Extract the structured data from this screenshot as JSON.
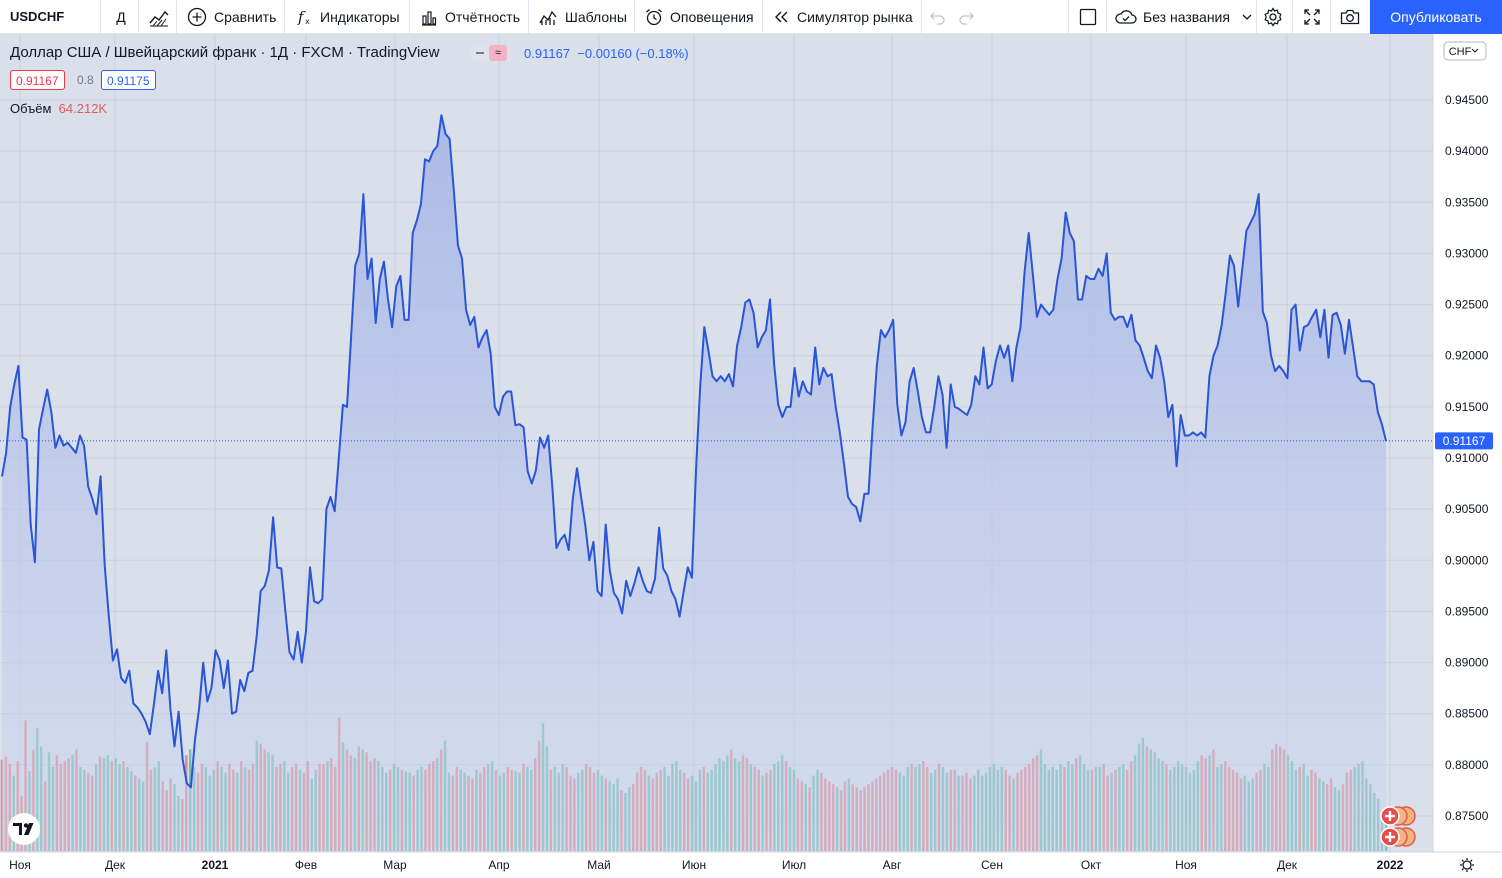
{
  "toolbar": {
    "symbol": "USDCHF",
    "interval": "Д",
    "compare": "Сравнить",
    "indicators": "Индикаторы",
    "reports": "Отчётность",
    "templates": "Шаблоны",
    "alerts": "Оповещения",
    "replay": "Симулятор рынка",
    "layout_name": "Без названия",
    "publish": "Опубликовать"
  },
  "legend": {
    "title": "Доллар США / Швейцарский франк · 1Д · FXCM · TradingView",
    "price": "0.91167",
    "change": "−0.00160 (−0.18%)",
    "bid": "0.91167",
    "spread": "0.8",
    "ask": "0.91175",
    "volume_label": "Объём",
    "volume_value": "64.212K"
  },
  "price_axis": {
    "currency": "CHF",
    "last_price_label": "0.91167",
    "tick_labels": [
      "0.94500",
      "0.94000",
      "0.93500",
      "0.93000",
      "0.92500",
      "0.92000",
      "0.91500",
      "0.91000",
      "0.90500",
      "0.90000",
      "0.89500",
      "0.89000",
      "0.88500",
      "0.88000",
      "0.87500"
    ]
  },
  "time_axis": {
    "labels": [
      "Ноя",
      "Дек",
      "2021",
      "Фев",
      "Мар",
      "Апр",
      "Май",
      "Июн",
      "Июл",
      "Авг",
      "Сен",
      "Окт",
      "Ноя",
      "Дек",
      "2022"
    ]
  },
  "colors": {
    "line": "#2a55d6",
    "up_volume": "#5fb8a7",
    "down_volume": "#e07b7b",
    "accent": "#2962ff",
    "negative": "#f23645"
  },
  "chart_data": {
    "type": "area",
    "symbol": "USDCHF",
    "ylim": [
      0.873,
      0.949
    ],
    "x_labels": [
      "Ноя",
      "Дек",
      "2021",
      "Фев",
      "Мар",
      "Апр",
      "Май",
      "Июн",
      "Июл",
      "Авг",
      "Сен",
      "Окт",
      "Ноя",
      "Дек",
      "2022"
    ],
    "last_value": 0.91167,
    "values": [
      0.9082,
      0.9105,
      0.915,
      0.9172,
      0.919,
      0.912,
      0.9118,
      0.9035,
      0.8998,
      0.9128,
      0.9148,
      0.9167,
      0.9145,
      0.911,
      0.9122,
      0.9112,
      0.9115,
      0.911,
      0.9105,
      0.9122,
      0.9112,
      0.9072,
      0.906,
      0.9045,
      0.9082,
      0.8995,
      0.8945,
      0.8902,
      0.8913,
      0.8885,
      0.888,
      0.8892,
      0.886,
      0.8856,
      0.885,
      0.8842,
      0.883,
      0.886,
      0.8892,
      0.887,
      0.8912,
      0.8855,
      0.8818,
      0.8852,
      0.8805,
      0.8782,
      0.8778,
      0.8825,
      0.8855,
      0.89,
      0.8862,
      0.8875,
      0.8912,
      0.8902,
      0.8875,
      0.8902,
      0.885,
      0.8852,
      0.8883,
      0.8872,
      0.889,
      0.8892,
      0.8925,
      0.897,
      0.8975,
      0.899,
      0.9042,
      0.8993,
      0.8992,
      0.895,
      0.891,
      0.8903,
      0.893,
      0.89,
      0.893,
      0.8993,
      0.896,
      0.8958,
      0.8962,
      0.905,
      0.9062,
      0.9048,
      0.91,
      0.9152,
      0.915,
      0.9218,
      0.9288,
      0.93,
      0.9358,
      0.9275,
      0.9295,
      0.9232,
      0.9275,
      0.9292,
      0.9255,
      0.9228,
      0.9268,
      0.9278,
      0.9235,
      0.9235,
      0.932,
      0.9332,
      0.9348,
      0.9392,
      0.939,
      0.94,
      0.9405,
      0.9435,
      0.9417,
      0.9412,
      0.9362,
      0.9308,
      0.9295,
      0.9245,
      0.923,
      0.9238,
      0.9208,
      0.9218,
      0.9225,
      0.9202,
      0.915,
      0.9142,
      0.916,
      0.9165,
      0.9165,
      0.9132,
      0.9133,
      0.913,
      0.9087,
      0.9075,
      0.9088,
      0.912,
      0.911,
      0.9122,
      0.9072,
      0.9012,
      0.902,
      0.9025,
      0.901,
      0.906,
      0.909,
      0.9062,
      0.9035,
      0.9,
      0.9018,
      0.897,
      0.8965,
      0.9035,
      0.899,
      0.8968,
      0.8962,
      0.8948,
      0.898,
      0.8965,
      0.8978,
      0.8993,
      0.898,
      0.897,
      0.8968,
      0.8982,
      0.9032,
      0.8992,
      0.8985,
      0.897,
      0.8962,
      0.8945,
      0.897,
      0.8993,
      0.8983,
      0.909,
      0.917,
      0.9228,
      0.9205,
      0.918,
      0.9175,
      0.918,
      0.9175,
      0.9182,
      0.917,
      0.921,
      0.9228,
      0.9252,
      0.9255,
      0.9242,
      0.9208,
      0.9218,
      0.9225,
      0.9255,
      0.9192,
      0.9152,
      0.914,
      0.915,
      0.915,
      0.9188,
      0.916,
      0.9175,
      0.9165,
      0.9162,
      0.9208,
      0.9172,
      0.9188,
      0.918,
      0.9182,
      0.915,
      0.9125,
      0.9095,
      0.9062,
      0.9055,
      0.9052,
      0.9038,
      0.9065,
      0.9065,
      0.913,
      0.919,
      0.9225,
      0.9218,
      0.9225,
      0.9235,
      0.9152,
      0.9122,
      0.9135,
      0.9175,
      0.9188,
      0.9165,
      0.914,
      0.9125,
      0.9125,
      0.915,
      0.918,
      0.9162,
      0.911,
      0.9172,
      0.915,
      0.9148,
      0.9145,
      0.9142,
      0.9152,
      0.918,
      0.9172,
      0.9208,
      0.9168,
      0.9172,
      0.9195,
      0.921,
      0.9198,
      0.921,
      0.9175,
      0.9208,
      0.9228,
      0.9282,
      0.932,
      0.928,
      0.9238,
      0.925,
      0.9245,
      0.924,
      0.9245,
      0.9275,
      0.9295,
      0.934,
      0.932,
      0.9312,
      0.9255,
      0.9255,
      0.9278,
      0.9275,
      0.9275,
      0.9285,
      0.9278,
      0.93,
      0.9242,
      0.9235,
      0.9238,
      0.9238,
      0.9228,
      0.924,
      0.9215,
      0.921,
      0.9198,
      0.9185,
      0.9178,
      0.921,
      0.9198,
      0.9175,
      0.914,
      0.9152,
      0.9092,
      0.9142,
      0.9122,
      0.9122,
      0.9125,
      0.9122,
      0.9125,
      0.912,
      0.918,
      0.92,
      0.921,
      0.923,
      0.9262,
      0.9298,
      0.9288,
      0.9248,
      0.9285,
      0.9322,
      0.933,
      0.9338,
      0.9358,
      0.9243,
      0.9232,
      0.92,
      0.9185,
      0.919,
      0.9185,
      0.9178,
      0.9245,
      0.925,
      0.9205,
      0.9228,
      0.923,
      0.9238,
      0.9245,
      0.9218,
      0.9245,
      0.9198,
      0.924,
      0.9242,
      0.923,
      0.9202,
      0.9235,
      0.9208,
      0.918,
      0.9175,
      0.9175,
      0.9175,
      0.9172,
      0.9145,
      0.9133,
      0.91167
    ],
    "volume_values": [
      63,
      65,
      60,
      52,
      62,
      38,
      90,
      55,
      70,
      85,
      72,
      48,
      68,
      58,
      66,
      60,
      62,
      64,
      66,
      70,
      58,
      56,
      54,
      52,
      60,
      65,
      64,
      66,
      62,
      64,
      60,
      62,
      58,
      55,
      52,
      50,
      48,
      75,
      56,
      58,
      62,
      48,
      42,
      50,
      46,
      38,
      36,
      66,
      70,
      58,
      54,
      60,
      58,
      52,
      56,
      62,
      58,
      54,
      60,
      56,
      54,
      62,
      58,
      56,
      60,
      76,
      74,
      70,
      68,
      66,
      58,
      60,
      62,
      54,
      58,
      60,
      56,
      54,
      62,
      50,
      56,
      60,
      60,
      62,
      64,
      58,
      92,
      75,
      70,
      66,
      64,
      72,
      70,
      68,
      62,
      64,
      62,
      58,
      54,
      56,
      60,
      58,
      56,
      55,
      54,
      52,
      56,
      58,
      56,
      60,
      62,
      64,
      70,
      76,
      54,
      52,
      58,
      56,
      54,
      52,
      50,
      56,
      54,
      58,
      60,
      62,
      56,
      52,
      54,
      58,
      56,
      55,
      54,
      60,
      58,
      56,
      64,
      76,
      88,
      72,
      56,
      58,
      54,
      60,
      58,
      52,
      50,
      54,
      56,
      60,
      58,
      54,
      56,
      52,
      50,
      48,
      46,
      50,
      42,
      40,
      44,
      46,
      54,
      58,
      56,
      52,
      50,
      54,
      56,
      58,
      52,
      60,
      62,
      56,
      54,
      50,
      52,
      48,
      56,
      58,
      54,
      56,
      60,
      64,
      62,
      66,
      70,
      64,
      62,
      66,
      64,
      60,
      58,
      56,
      52,
      54,
      56,
      60,
      62,
      66,
      62,
      58,
      56,
      50,
      48,
      46,
      44,
      52,
      56,
      54,
      50,
      48,
      46,
      44,
      42,
      48,
      50,
      46,
      44,
      42,
      44,
      46,
      48,
      50,
      52,
      54,
      56,
      58,
      56,
      54,
      52,
      58,
      60,
      58,
      60,
      62,
      58,
      54,
      56,
      60,
      58,
      54,
      56,
      56,
      52,
      52,
      54,
      50,
      52,
      56,
      52,
      54,
      58,
      60,
      56,
      58,
      56,
      52,
      50,
      54,
      56,
      58,
      60,
      64,
      66,
      70,
      60,
      56,
      58,
      56,
      60,
      58,
      62,
      60,
      64,
      66,
      60,
      56,
      56,
      58,
      58,
      60,
      52,
      54,
      56,
      58,
      60,
      56,
      62,
      66,
      74,
      78,
      72,
      70,
      68,
      64,
      62,
      60,
      56,
      58,
      62,
      60,
      58,
      54,
      56,
      62,
      66,
      64,
      66,
      70,
      58,
      60,
      62,
      58,
      56,
      54,
      50,
      52,
      48,
      50,
      54,
      56,
      60,
      58,
      70,
      74,
      72,
      70,
      66,
      62,
      56,
      58,
      60,
      52,
      56,
      54,
      50,
      48,
      46,
      50,
      44,
      42,
      46,
      54,
      56,
      58,
      60,
      62,
      50,
      46,
      40,
      36,
      28,
      24
    ],
    "volume_colors": "ddduddduduuduudddduduudduduuduuduuduudduuddduudduudduuuduuddududdudduudduuddudduudduddduddududdduuuduuduuduuddduduudduuddudduuduudduuduudduuduuuddduuddduuduuuduudddduddduuuuudduuuduuuuuuduudduddudduuuduudduduudddduddudddddddddddduuuduudduuduudduddduuuuuuuuddudddddduuuuuuduuduuuduudduduudduuuduuuuduuuuuuuudduduuddddduuudduudddduuuduudduudduuddd"
  }
}
